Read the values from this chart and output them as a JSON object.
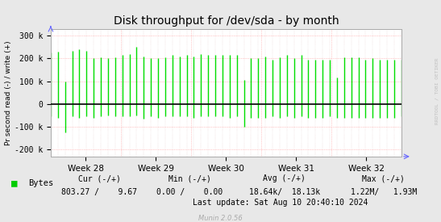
{
  "title": "Disk throughput for /dev/sda - by month",
  "ylabel": "Pr second read (-) / write (+)",
  "xlabel_ticks": [
    "Week 28",
    "Week 29",
    "Week 30",
    "Week 31",
    "Week 32"
  ],
  "ylim": [
    -230000,
    330000
  ],
  "yticks": [
    -200000,
    -100000,
    0,
    100000,
    200000,
    300000
  ],
  "ytick_labels": [
    "-200 k",
    "-100 k",
    "0",
    "100 k",
    "200 k",
    "300 k"
  ],
  "bg_color": "#e8e8e8",
  "plot_bg_color": "#ffffff",
  "line_color": "#00e000",
  "zero_line_color": "#000000",
  "sidebar_text": "RRDTOOL / TOBI OETIKER",
  "sidebar_color": "#c0c0c0",
  "legend_label": "Bytes",
  "legend_color": "#00cc00",
  "footer_cur_label": "Cur (-/+)",
  "footer_cur_val": "803.27 /    9.67",
  "footer_min_label": "Min (-/+)",
  "footer_min_val": "0.00 /    0.00",
  "footer_avg_label": "Avg (-/+)",
  "footer_avg_val": "18.64k/  18.13k",
  "footer_max_label": "Max (-/+)",
  "footer_max_val": "1.22M/   1.93M",
  "footer_update": "Last update: Sat Aug 10 20:40:10 2024",
  "munin_label": "Munin 2.0.56",
  "num_spikes": 50,
  "spike_positive": [
    225000,
    230000,
    100000,
    235000,
    240000,
    235000,
    200000,
    205000,
    200000,
    205000,
    215000,
    220000,
    250000,
    210000,
    200000,
    200000,
    205000,
    215000,
    210000,
    215000,
    210000,
    220000,
    215000,
    215000,
    215000,
    215000,
    215000,
    105000,
    200000,
    200000,
    210000,
    195000,
    205000,
    215000,
    200000,
    215000,
    195000,
    195000,
    195000,
    195000,
    115000,
    205000,
    205000,
    205000,
    195000,
    200000,
    195000,
    195000,
    195000,
    195000
  ],
  "spike_negative": [
    -55000,
    -60000,
    -125000,
    -55000,
    -60000,
    -55000,
    -60000,
    -55000,
    -50000,
    -55000,
    -55000,
    -55000,
    -50000,
    -65000,
    -55000,
    -60000,
    -55000,
    -55000,
    -55000,
    -55000,
    -60000,
    -55000,
    -55000,
    -55000,
    -55000,
    -60000,
    -55000,
    -100000,
    -60000,
    -60000,
    -60000,
    -55000,
    -60000,
    -55000,
    -60000,
    -55000,
    -60000,
    -60000,
    -60000,
    -55000,
    -60000,
    -60000,
    -60000,
    -60000,
    -60000,
    -60000,
    -60000,
    -60000,
    -60000,
    -55000
  ]
}
